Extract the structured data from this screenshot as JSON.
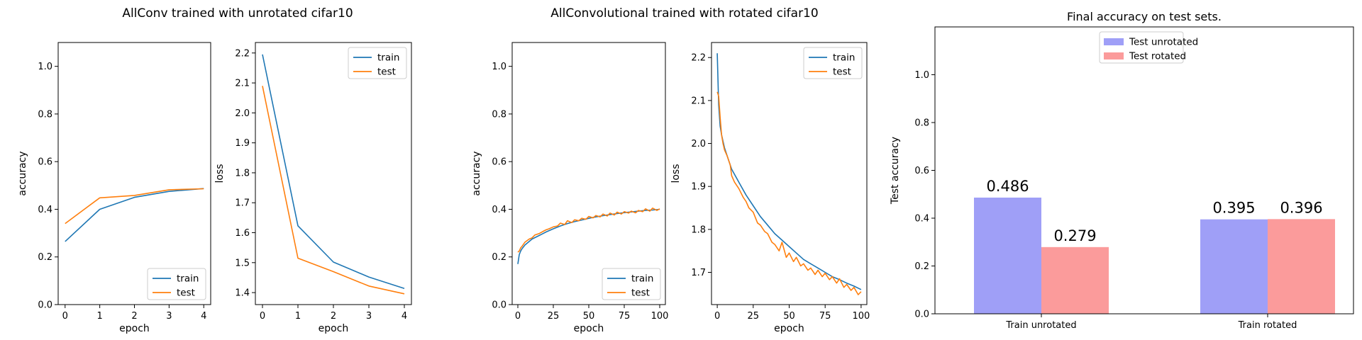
{
  "figure_titles": [
    "AllConv trained with unrotated cifar10",
    "AllConvolutional trained with rotated cifar10"
  ],
  "colors": {
    "train": "#1f77b4",
    "test": "#ff7f0e",
    "test_unrotated": "#9f9ff7",
    "test_rotated": "#fb9b9b"
  },
  "chart_data": [
    {
      "id": "p1",
      "type": "line",
      "title": "",
      "xlabel": "epoch",
      "ylabel": "accuracy",
      "xlim": [
        -0.2,
        4.2
      ],
      "ylim": [
        0,
        1.1
      ],
      "xticks": [
        0,
        1,
        2,
        3,
        4
      ],
      "yticks": [
        0,
        0.2,
        0.4,
        0.6,
        0.8,
        1.0
      ],
      "ytick_labels": [
        "0.0",
        "0.2",
        "0.4",
        "0.6",
        "0.8",
        "1.0"
      ],
      "legend": "lower-right",
      "series": [
        {
          "name": "train",
          "x": [
            0,
            1,
            2,
            3,
            4
          ],
          "y": [
            0.265,
            0.4,
            0.45,
            0.475,
            0.487
          ]
        },
        {
          "name": "test",
          "x": [
            0,
            1,
            2,
            3,
            4
          ],
          "y": [
            0.34,
            0.448,
            0.458,
            0.482,
            0.486
          ]
        }
      ]
    },
    {
      "id": "p2",
      "type": "line",
      "title": "",
      "xlabel": "epoch",
      "ylabel": "loss",
      "xlim": [
        -0.2,
        4.2
      ],
      "ylim": [
        1.36,
        2.235
      ],
      "xticks": [
        0,
        1,
        2,
        3,
        4
      ],
      "yticks": [
        1.4,
        1.5,
        1.6,
        1.7,
        1.8,
        1.9,
        2.0,
        2.1,
        2.2
      ],
      "ytick_labels": [
        "1.4",
        "1.5",
        "1.6",
        "1.7",
        "1.8",
        "1.9",
        "2.0",
        "2.1",
        "2.2"
      ],
      "legend": "upper-right",
      "series": [
        {
          "name": "train",
          "x": [
            0,
            1,
            2,
            3,
            4
          ],
          "y": [
            2.195,
            1.623,
            1.502,
            1.452,
            1.414
          ]
        },
        {
          "name": "test",
          "x": [
            0,
            1,
            2,
            3,
            4
          ],
          "y": [
            2.09,
            1.515,
            1.47,
            1.422,
            1.396
          ]
        }
      ]
    },
    {
      "id": "p3",
      "type": "line",
      "title": "",
      "xlabel": "epoch",
      "ylabel": "accuracy",
      "xlim": [
        -4,
        104
      ],
      "ylim": [
        0,
        1.1
      ],
      "xticks": [
        0,
        25,
        50,
        75,
        100
      ],
      "yticks": [
        0,
        0.2,
        0.4,
        0.6,
        0.8,
        1.0
      ],
      "ytick_labels": [
        "0.0",
        "0.2",
        "0.4",
        "0.6",
        "0.8",
        "1.0"
      ],
      "legend": "lower-right",
      "series": [
        {
          "name": "train",
          "x": [
            0,
            1,
            2,
            3,
            5,
            8,
            10,
            15,
            20,
            25,
            30,
            35,
            40,
            45,
            50,
            55,
            60,
            65,
            70,
            75,
            80,
            85,
            90,
            95,
            100
          ],
          "y": [
            0.17,
            0.21,
            0.225,
            0.235,
            0.25,
            0.265,
            0.275,
            0.29,
            0.305,
            0.318,
            0.33,
            0.34,
            0.348,
            0.355,
            0.362,
            0.368,
            0.373,
            0.378,
            0.382,
            0.386,
            0.389,
            0.392,
            0.395,
            0.397,
            0.4
          ]
        },
        {
          "name": "test",
          "x": [
            0,
            1,
            2,
            3,
            5,
            8,
            10,
            12,
            15,
            18,
            20,
            22,
            25,
            28,
            30,
            33,
            35,
            38,
            40,
            43,
            45,
            48,
            50,
            53,
            55,
            58,
            60,
            63,
            65,
            68,
            70,
            73,
            75,
            78,
            80,
            83,
            85,
            88,
            90,
            93,
            95,
            98,
            100
          ],
          "y": [
            0.22,
            0.225,
            0.238,
            0.245,
            0.262,
            0.275,
            0.28,
            0.292,
            0.298,
            0.308,
            0.314,
            0.318,
            0.326,
            0.33,
            0.342,
            0.336,
            0.352,
            0.344,
            0.356,
            0.352,
            0.362,
            0.358,
            0.37,
            0.364,
            0.374,
            0.368,
            0.38,
            0.372,
            0.384,
            0.376,
            0.388,
            0.38,
            0.39,
            0.384,
            0.392,
            0.385,
            0.395,
            0.39,
            0.402,
            0.392,
            0.405,
            0.395,
            0.402
          ]
        }
      ]
    },
    {
      "id": "p4",
      "type": "line",
      "title": "",
      "xlabel": "epoch",
      "ylabel": "loss",
      "xlim": [
        -4,
        104
      ],
      "ylim": [
        1.625,
        2.235
      ],
      "xticks": [
        0,
        25,
        50,
        75,
        100
      ],
      "yticks": [
        1.7,
        1.8,
        1.9,
        2.0,
        2.1,
        2.2
      ],
      "ytick_labels": [
        "1.7",
        "1.8",
        "1.9",
        "2.0",
        "2.1",
        "2.2"
      ],
      "legend": "upper-right",
      "series": [
        {
          "name": "train",
          "x": [
            0,
            1,
            2,
            3,
            5,
            8,
            10,
            15,
            20,
            25,
            30,
            35,
            40,
            45,
            50,
            55,
            60,
            65,
            70,
            75,
            80,
            85,
            90,
            95,
            100
          ],
          "y": [
            2.21,
            2.09,
            2.04,
            2.02,
            1.99,
            1.96,
            1.94,
            1.91,
            1.88,
            1.855,
            1.83,
            1.81,
            1.79,
            1.775,
            1.76,
            1.745,
            1.73,
            1.72,
            1.71,
            1.7,
            1.69,
            1.683,
            1.675,
            1.668,
            1.66
          ]
        },
        {
          "name": "test",
          "x": [
            0,
            1,
            2,
            3,
            4,
            5,
            7,
            9,
            10,
            12,
            15,
            18,
            20,
            22,
            25,
            28,
            30,
            33,
            35,
            38,
            40,
            43,
            45,
            48,
            50,
            53,
            55,
            58,
            60,
            63,
            65,
            68,
            70,
            73,
            75,
            78,
            80,
            83,
            85,
            88,
            90,
            93,
            95,
            98,
            100
          ],
          "y": [
            2.12,
            2.11,
            2.06,
            2.02,
            2.0,
            1.985,
            1.97,
            1.95,
            1.925,
            1.91,
            1.895,
            1.875,
            1.865,
            1.85,
            1.84,
            1.815,
            1.81,
            1.795,
            1.79,
            1.77,
            1.765,
            1.75,
            1.77,
            1.735,
            1.745,
            1.725,
            1.735,
            1.715,
            1.72,
            1.705,
            1.71,
            1.695,
            1.705,
            1.69,
            1.698,
            1.683,
            1.69,
            1.675,
            1.685,
            1.665,
            1.672,
            1.658,
            1.665,
            1.648,
            1.655
          ]
        }
      ]
    },
    {
      "id": "p5",
      "type": "bar",
      "title": "Final accuracy on test sets.",
      "xlabel": "",
      "ylabel": "Test accuracy",
      "ylim": [
        0,
        1.2
      ],
      "yticks": [
        0,
        0.2,
        0.4,
        0.6,
        0.8,
        1.0
      ],
      "ytick_labels": [
        "0.0",
        "0.2",
        "0.4",
        "0.6",
        "0.8",
        "1.0"
      ],
      "categories": [
        "Train unrotated",
        "Train rotated"
      ],
      "legend": "upper-center",
      "series": [
        {
          "name": "Test unrotated",
          "values": [
            0.486,
            0.395
          ],
          "value_labels": [
            "0.486",
            "0.395"
          ]
        },
        {
          "name": "Test rotated",
          "values": [
            0.279,
            0.396
          ],
          "value_labels": [
            "0.279",
            "0.396"
          ]
        }
      ]
    }
  ]
}
